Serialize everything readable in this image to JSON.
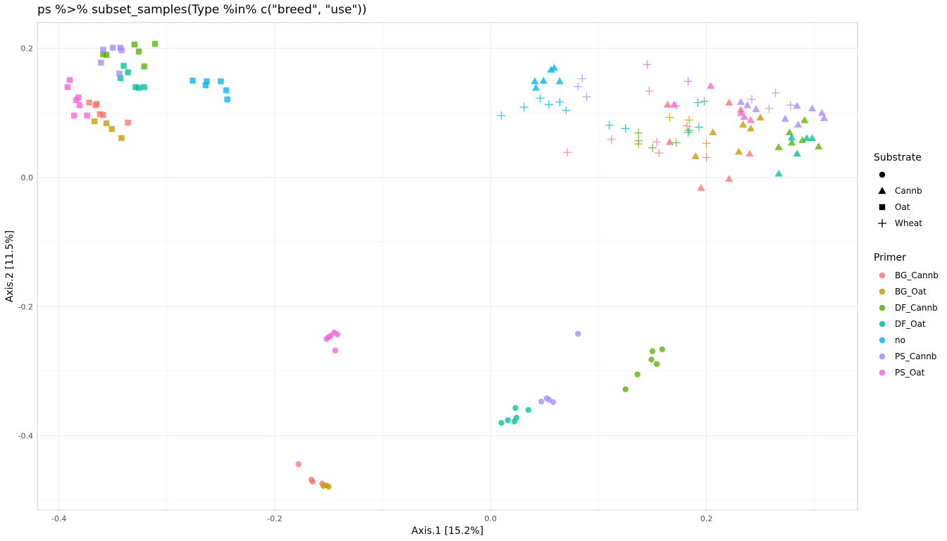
{
  "title": "ps %>% subset_samples(Type %in% c(\"breed\", \"use\"))",
  "chart_data": {
    "type": "scatter",
    "xlabel": "Axis.1   [15.2%]",
    "ylabel": "Axis.2   [11.5%]",
    "xlim": [
      -0.42,
      0.34
    ],
    "ylim": [
      -0.515,
      0.24
    ],
    "xticks": [
      -0.4,
      -0.2,
      0.0,
      0.2
    ],
    "xtick_labels": [
      "-0.4",
      "-0.2",
      "0.0",
      "0.2"
    ],
    "yticks": [
      -0.4,
      -0.2,
      0.0,
      0.2
    ],
    "ytick_labels": [
      "-0.4",
      "-0.2",
      "0.0",
      "0.2"
    ],
    "grid": true,
    "legend_position": "right",
    "shape_legend": {
      "title": "Substrate",
      "items": [
        {
          "label": "",
          "shape": "circle"
        },
        {
          "label": "Cannb",
          "shape": "triangle"
        },
        {
          "label": "Oat",
          "shape": "square"
        },
        {
          "label": "Wheat",
          "shape": "plus"
        }
      ]
    },
    "color_legend": {
      "title": "Primer",
      "items": [
        {
          "label": "BG_Cannb",
          "color": "#F8766D"
        },
        {
          "label": "BG_Oat",
          "color": "#C49A00"
        },
        {
          "label": "DF_Cannb",
          "color": "#53B400"
        },
        {
          "label": "DF_Oat",
          "color": "#00C094"
        },
        {
          "label": "no",
          "color": "#00B6EB"
        },
        {
          "label": "PS_Cannb",
          "color": "#A58AFF"
        },
        {
          "label": "PS_Oat",
          "color": "#FB61D7"
        }
      ]
    },
    "series": [
      {
        "primer": "BG_Cannb",
        "substrate": "",
        "points": [
          [
            -0.178,
            -0.444
          ],
          [
            -0.166,
            -0.468
          ],
          [
            -0.165,
            -0.471
          ],
          [
            -0.156,
            -0.474
          ]
        ]
      },
      {
        "primer": "BG_Oat",
        "substrate": "",
        "points": [
          [
            -0.155,
            -0.478
          ],
          [
            -0.152,
            -0.477
          ],
          [
            -0.15,
            -0.479
          ]
        ]
      },
      {
        "primer": "DF_Cannb",
        "substrate": "",
        "points": [
          [
            0.159,
            -0.266
          ],
          [
            0.15,
            -0.269
          ],
          [
            0.149,
            -0.282
          ],
          [
            0.154,
            -0.289
          ],
          [
            0.136,
            -0.305
          ],
          [
            0.125,
            -0.328
          ]
        ]
      },
      {
        "primer": "DF_Oat",
        "substrate": "",
        "points": [
          [
            0.01,
            -0.38
          ],
          [
            0.016,
            -0.376
          ],
          [
            0.022,
            -0.378
          ],
          [
            0.024,
            -0.372
          ],
          [
            0.023,
            -0.357
          ],
          [
            0.035,
            -0.36
          ]
        ]
      },
      {
        "primer": "PS_Cannb",
        "substrate": "",
        "points": [
          [
            0.047,
            -0.347
          ],
          [
            0.052,
            -0.342
          ],
          [
            0.054,
            -0.344
          ],
          [
            0.058,
            -0.348
          ],
          [
            0.081,
            -0.242
          ]
        ]
      },
      {
        "primer": "PS_Oat",
        "substrate": "",
        "points": [
          [
            -0.145,
            -0.24
          ],
          [
            -0.142,
            -0.243
          ],
          [
            -0.148,
            -0.245
          ],
          [
            -0.15,
            -0.247
          ],
          [
            -0.152,
            -0.25
          ],
          [
            -0.144,
            -0.268
          ]
        ]
      },
      {
        "primer": "BG_Cannb",
        "substrate": "Cannb",
        "points": [
          [
            0.164,
            0.113
          ],
          [
            0.166,
            0.055
          ],
          [
            0.195,
            -0.016
          ],
          [
            0.221,
            0.116
          ],
          [
            0.221,
            -0.002
          ],
          [
            0.232,
            0.105
          ],
          [
            0.24,
            0.037
          ]
        ]
      },
      {
        "primer": "BG_Oat",
        "substrate": "Cannb",
        "points": [
          [
            0.19,
            0.033
          ],
          [
            0.206,
            0.07
          ],
          [
            0.23,
            0.04
          ],
          [
            0.234,
            0.082
          ],
          [
            0.241,
            0.076
          ],
          [
            0.25,
            0.093
          ]
        ]
      },
      {
        "primer": "DF_Cannb",
        "substrate": "Cannb",
        "points": [
          [
            0.267,
            0.047
          ],
          [
            0.277,
            0.07
          ],
          [
            0.279,
            0.054
          ],
          [
            0.289,
            0.058
          ],
          [
            0.291,
            0.089
          ],
          [
            0.304,
            0.048
          ]
        ]
      },
      {
        "primer": "DF_Oat",
        "substrate": "Cannb",
        "points": [
          [
            0.267,
            0.006
          ],
          [
            0.279,
            0.062
          ],
          [
            0.284,
            0.037
          ],
          [
            0.293,
            0.061
          ],
          [
            0.298,
            0.061
          ]
        ]
      },
      {
        "primer": "no",
        "substrate": "Cannb",
        "points": [
          [
            0.041,
            0.149
          ],
          [
            0.042,
            0.139
          ],
          [
            0.049,
            0.15
          ],
          [
            0.056,
            0.167
          ],
          [
            0.059,
            0.17
          ],
          [
            0.064,
            0.149
          ]
        ]
      },
      {
        "primer": "PS_Cannb",
        "substrate": "Cannb",
        "points": [
          [
            0.232,
            0.117
          ],
          [
            0.238,
            0.112
          ],
          [
            0.246,
            0.106
          ],
          [
            0.273,
            0.091
          ],
          [
            0.284,
            0.111
          ],
          [
            0.285,
            0.082
          ],
          [
            0.298,
            0.107
          ],
          [
            0.307,
            0.1
          ],
          [
            0.309,
            0.092
          ]
        ]
      },
      {
        "primer": "PS_Oat",
        "substrate": "Cannb",
        "points": [
          [
            0.17,
            0.113
          ],
          [
            0.204,
            0.142
          ],
          [
            0.232,
            0.1
          ],
          [
            0.241,
            0.089
          ],
          [
            0.235,
            0.094
          ]
        ]
      },
      {
        "primer": "BG_Cannb",
        "substrate": "Oat",
        "points": [
          [
            -0.372,
            0.116
          ],
          [
            -0.365,
            0.114
          ],
          [
            -0.366,
            0.112
          ],
          [
            -0.359,
            0.097
          ],
          [
            -0.362,
            0.098
          ],
          [
            -0.336,
            0.085
          ]
        ]
      },
      {
        "primer": "BG_Oat",
        "substrate": "Oat",
        "points": [
          [
            -0.367,
            0.087
          ],
          [
            -0.356,
            0.084
          ],
          [
            -0.351,
            0.075
          ],
          [
            -0.342,
            0.061
          ]
        ]
      },
      {
        "primer": "DF_Cannb",
        "substrate": "Oat",
        "points": [
          [
            -0.359,
            0.191
          ],
          [
            -0.356,
            0.19
          ],
          [
            -0.33,
            0.206
          ],
          [
            -0.326,
            0.195
          ],
          [
            -0.321,
            0.172
          ],
          [
            -0.311,
            0.207
          ]
        ]
      },
      {
        "primer": "DF_Oat",
        "substrate": "Oat",
        "points": [
          [
            -0.343,
            0.154
          ],
          [
            -0.34,
            0.173
          ],
          [
            -0.336,
            0.163
          ],
          [
            -0.329,
            0.14
          ],
          [
            -0.326,
            0.139
          ],
          [
            -0.321,
            0.14
          ]
        ]
      },
      {
        "primer": "no",
        "substrate": "Oat",
        "points": [
          [
            -0.276,
            0.15
          ],
          [
            -0.263,
            0.149
          ],
          [
            -0.264,
            0.143
          ],
          [
            -0.25,
            0.149
          ],
          [
            -0.245,
            0.135
          ],
          [
            -0.244,
            0.121
          ]
        ]
      },
      {
        "primer": "PS_Cannb",
        "substrate": "Oat",
        "points": [
          [
            -0.359,
            0.198
          ],
          [
            -0.361,
            0.178
          ],
          [
            -0.35,
            0.201
          ],
          [
            -0.343,
            0.201
          ],
          [
            -0.342,
            0.197
          ],
          [
            -0.344,
            0.161
          ]
        ]
      },
      {
        "primer": "PS_Oat",
        "substrate": "Oat",
        "points": [
          [
            -0.392,
            0.14
          ],
          [
            -0.39,
            0.151
          ],
          [
            -0.384,
            0.12
          ],
          [
            -0.382,
            0.124
          ],
          [
            -0.381,
            0.112
          ],
          [
            -0.386,
            0.096
          ],
          [
            -0.374,
            0.096
          ]
        ]
      },
      {
        "primer": "BG_Cannb",
        "substrate": "Wheat",
        "points": [
          [
            0.071,
            0.039
          ],
          [
            0.112,
            0.059
          ],
          [
            0.156,
            0.038
          ],
          [
            0.182,
            0.08
          ],
          [
            0.2,
            0.031
          ]
        ]
      },
      {
        "primer": "BG_Oat",
        "substrate": "Wheat",
        "points": [
          [
            0.166,
            0.093
          ],
          [
            0.184,
            0.089
          ],
          [
            0.2,
            0.053
          ],
          [
            0.137,
            0.052
          ]
        ]
      },
      {
        "primer": "DF_Cannb",
        "substrate": "Wheat",
        "points": [
          [
            0.137,
            0.069
          ],
          [
            0.137,
            0.057
          ],
          [
            0.15,
            0.046
          ],
          [
            0.172,
            0.054
          ],
          [
            0.184,
            0.073
          ]
        ]
      },
      {
        "primer": "DF_Oat",
        "substrate": "Wheat",
        "points": [
          [
            0.11,
            0.081
          ],
          [
            0.125,
            0.076
          ],
          [
            0.183,
            0.07
          ],
          [
            0.192,
            0.116
          ],
          [
            0.193,
            0.078
          ],
          [
            0.198,
            0.118
          ]
        ]
      },
      {
        "primer": "no",
        "substrate": "Wheat",
        "points": [
          [
            0.01,
            0.096
          ],
          [
            0.031,
            0.109
          ],
          [
            0.046,
            0.123
          ],
          [
            0.054,
            0.113
          ],
          [
            0.064,
            0.117
          ],
          [
            0.07,
            0.104
          ]
        ]
      },
      {
        "primer": "PS_Cannb",
        "substrate": "Wheat",
        "points": [
          [
            0.081,
            0.141
          ],
          [
            0.085,
            0.153
          ],
          [
            0.089,
            0.125
          ],
          [
            0.242,
            0.121
          ],
          [
            0.258,
            0.107
          ],
          [
            0.264,
            0.131
          ],
          [
            0.278,
            0.112
          ]
        ]
      },
      {
        "primer": "PS_Oat",
        "substrate": "Wheat",
        "points": [
          [
            0.145,
            0.175
          ],
          [
            0.147,
            0.134
          ],
          [
            0.183,
            0.149
          ],
          [
            0.172,
            0.111
          ],
          [
            0.154,
            0.055
          ]
        ]
      }
    ]
  }
}
